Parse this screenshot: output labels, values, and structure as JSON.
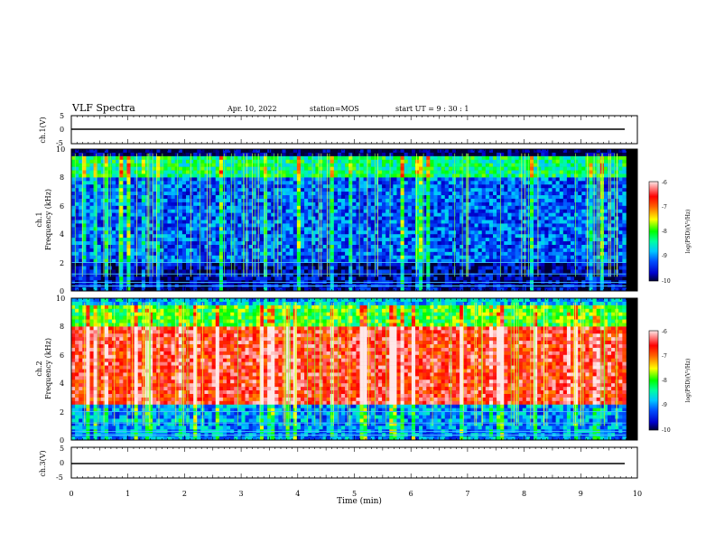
{
  "header": {
    "title": "VLF Spectra",
    "date": "Apr. 10, 2022",
    "station": "station=MOS",
    "start": "start  UT  =   9 : 30 : 1"
  },
  "chart_data": [
    {
      "type": "line",
      "id": "ch1-waveform",
      "ylabel": "ch.1(V)",
      "ylim": [
        -5,
        5
      ],
      "yticks": [
        "5",
        "0",
        "-5"
      ],
      "x": [
        0,
        10
      ],
      "values": [
        0,
        0
      ]
    },
    {
      "type": "heatmap",
      "id": "ch1-spectrogram",
      "ylabel": "ch.1\nFrequency (kHz)",
      "ylim": [
        0,
        10
      ],
      "yticks": [
        "0",
        "2",
        "4",
        "6",
        "8",
        "10"
      ],
      "xlim": [
        0,
        9.8
      ],
      "description_bands": [
        {
          "from_khz": 9.5,
          "to_khz": 10,
          "level": -10
        },
        {
          "from_khz": 8.0,
          "to_khz": 9.4,
          "level": -8.3
        },
        {
          "from_khz": 2.0,
          "to_khz": 8.0,
          "level": -9.2
        },
        {
          "from_khz": 0,
          "to_khz": 2.0,
          "level": -9.7
        }
      ],
      "colorbar": {
        "label": "log(PSD)(V²/Hz)",
        "range": [
          -10,
          -6
        ],
        "ticks": [
          "-6",
          "-7",
          "-8",
          "-9",
          "-10"
        ]
      }
    },
    {
      "type": "heatmap",
      "id": "ch2-spectrogram",
      "ylabel": "ch.2\nFrequency (kHz)",
      "ylim": [
        0,
        10
      ],
      "yticks": [
        "0",
        "2",
        "4",
        "6",
        "8",
        "10"
      ],
      "xlim": [
        0,
        9.8
      ],
      "description_bands": [
        {
          "from_khz": 9.5,
          "to_khz": 10,
          "level": -8.8
        },
        {
          "from_khz": 8.0,
          "to_khz": 9.5,
          "level": -8.0
        },
        {
          "from_khz": 2.5,
          "to_khz": 8.0,
          "level": -6.6
        },
        {
          "from_khz": 0,
          "to_khz": 2.5,
          "level": -9.0
        }
      ],
      "colorbar": {
        "label": "log(PSD)(V²/Hz)",
        "range": [
          -10,
          -6
        ],
        "ticks": [
          "-6",
          "-7",
          "-8",
          "-9",
          "-10"
        ]
      }
    },
    {
      "type": "line",
      "id": "ch3-waveform",
      "ylabel": "ch.3(V)",
      "ylim": [
        -5,
        5
      ],
      "yticks": [
        "5",
        "0",
        "-5"
      ],
      "x": [
        0,
        10
      ],
      "values": [
        0,
        0
      ]
    }
  ],
  "xaxis": {
    "label": "Time  (min)",
    "ticks": [
      "0",
      "1",
      "2",
      "3",
      "4",
      "5",
      "6",
      "7",
      "8",
      "9",
      "10"
    ],
    "range": [
      0,
      10
    ]
  },
  "colors": {
    "black": "#000000",
    "navy": "#000066",
    "blue": "#0000ff",
    "cyan": "#00ffff",
    "green": "#00ff00",
    "yellow": "#ffff00",
    "red": "#ff0000",
    "pink": "#ffc0c0"
  }
}
